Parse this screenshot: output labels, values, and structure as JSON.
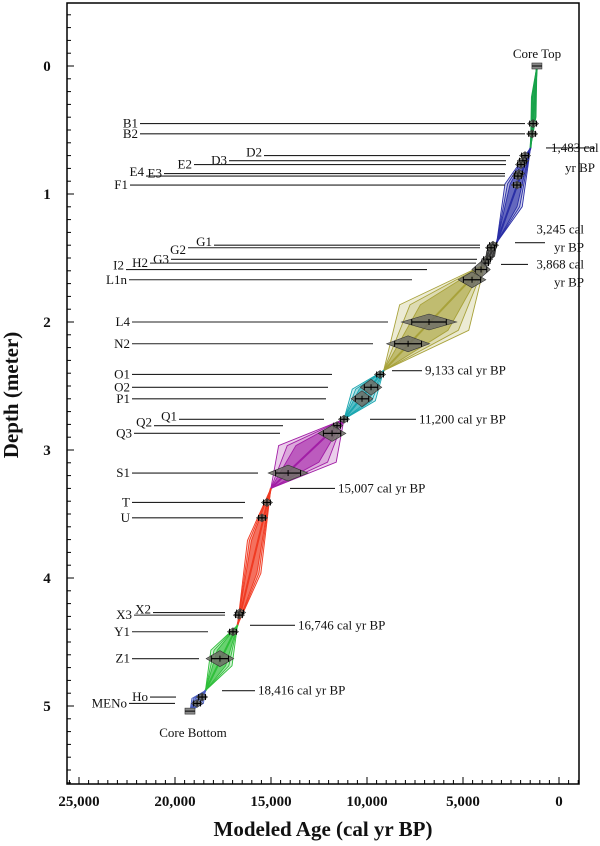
{
  "chart_data": {
    "type": "line",
    "xlabel": "Modeled Age (cal yr BP)",
    "ylabel": "Depth (meter)",
    "xlim": [
      25625,
      -1040
    ],
    "ylim": [
      -0.49,
      5.61
    ],
    "x_reversed": true,
    "y_reversed": true,
    "x_ticks": [
      "25,000",
      "20,000",
      "15,000",
      "10,000",
      "5,000",
      "0"
    ],
    "x_tick_values": [
      25000,
      20000,
      15000,
      10000,
      5000,
      0
    ],
    "y_ticks": [
      "0",
      "1",
      "2",
      "3",
      "4",
      "5"
    ],
    "y_tick_values": [
      0,
      1,
      2,
      3,
      4,
      5
    ],
    "grid": false,
    "annotations": {
      "core_top": "Core Top",
      "core_bottom": "Core Bottom"
    },
    "core_top": {
      "age": 1150,
      "depth": 0
    },
    "core_bottom": {
      "age": 19220,
      "depth": 5.04
    },
    "boundaries": [
      {
        "age": 1483,
        "depth": 0.64,
        "label": [
          "1,483 cal",
          "yr BP"
        ]
      },
      {
        "age": 3245,
        "depth": 1.38,
        "label": [
          "3,245 cal",
          "yr BP"
        ]
      },
      {
        "age": 3868,
        "depth": 1.55,
        "label": [
          "3,868 cal",
          "yr BP"
        ]
      },
      {
        "age": 9133,
        "depth": 2.38,
        "label": [
          "9,133 cal yr BP"
        ]
      },
      {
        "age": 11200,
        "depth": 2.76,
        "label": [
          "11,200 cal yr BP"
        ]
      },
      {
        "age": 15007,
        "depth": 3.3,
        "label": [
          "15,007 cal yr BP"
        ]
      },
      {
        "age": 16746,
        "depth": 4.37,
        "label": [
          "16,746 cal yr BP"
        ]
      },
      {
        "age": 18416,
        "depth": 4.88,
        "label": [
          "18,416 cal yr BP"
        ]
      }
    ],
    "segments": [
      {
        "color": "#17a34a"
      },
      {
        "color": "#2a2fa6"
      },
      {
        "color": "#333333"
      },
      {
        "color": "#a8a23a"
      },
      {
        "color": "#1aa6b0"
      },
      {
        "color": "#a21ea6"
      },
      {
        "color": "#f03a22"
      },
      {
        "color": "#2fbf3a"
      },
      {
        "color": "#4a5ec0"
      }
    ],
    "layers": [
      {
        "name": "B1",
        "depth": 0.45,
        "age": 1350
      },
      {
        "name": "B2",
        "depth": 0.53,
        "age": 1400
      },
      {
        "name": "D2",
        "depth": 0.7,
        "age": 1770
      },
      {
        "name": "D3",
        "depth": 0.74,
        "age": 1880
      },
      {
        "name": "E2",
        "depth": 0.77,
        "age": 1980
      },
      {
        "name": "E3",
        "depth": 0.84,
        "age": 2080
      },
      {
        "name": "E4",
        "depth": 0.86,
        "age": 2140
      },
      {
        "name": "F1",
        "depth": 0.93,
        "age": 2190
      },
      {
        "name": "G1",
        "depth": 1.4,
        "age": 3440
      },
      {
        "name": "G2",
        "depth": 1.42,
        "age": 3540
      },
      {
        "name": "G3",
        "depth": 1.51,
        "age": 3750
      },
      {
        "name": "H2",
        "depth": 1.54,
        "age": 3850
      },
      {
        "name": "I2",
        "depth": 1.59,
        "age": 4060
      },
      {
        "name": "L1n",
        "depth": 1.67,
        "age": 4530
      },
      {
        "name": "L4",
        "depth": 2.0,
        "age": 6770
      },
      {
        "name": "N2",
        "depth": 2.17,
        "age": 7860
      },
      {
        "name": "O1",
        "depth": 2.41,
        "age": 9320
      },
      {
        "name": "O2",
        "depth": 2.51,
        "age": 9790
      },
      {
        "name": "P1",
        "depth": 2.6,
        "age": 10260
      },
      {
        "name": "Q1",
        "depth": 2.76,
        "age": 11200
      },
      {
        "name": "Q2",
        "depth": 2.81,
        "age": 11560
      },
      {
        "name": "Q3",
        "depth": 2.87,
        "age": 11820
      },
      {
        "name": "S1",
        "depth": 3.18,
        "age": 14110
      },
      {
        "name": "T",
        "depth": 3.41,
        "age": 15210
      },
      {
        "name": "U",
        "depth": 3.53,
        "age": 15470
      },
      {
        "name": "X2",
        "depth": 4.27,
        "age": 16610
      },
      {
        "name": "X3",
        "depth": 4.29,
        "age": 16670
      },
      {
        "name": "Y1",
        "depth": 4.42,
        "age": 16980
      },
      {
        "name": "Z1",
        "depth": 4.63,
        "age": 17660
      },
      {
        "name": "Ho",
        "depth": 4.93,
        "age": 18590
      },
      {
        "name": "MENo",
        "depth": 4.98,
        "age": 18850
      }
    ]
  }
}
